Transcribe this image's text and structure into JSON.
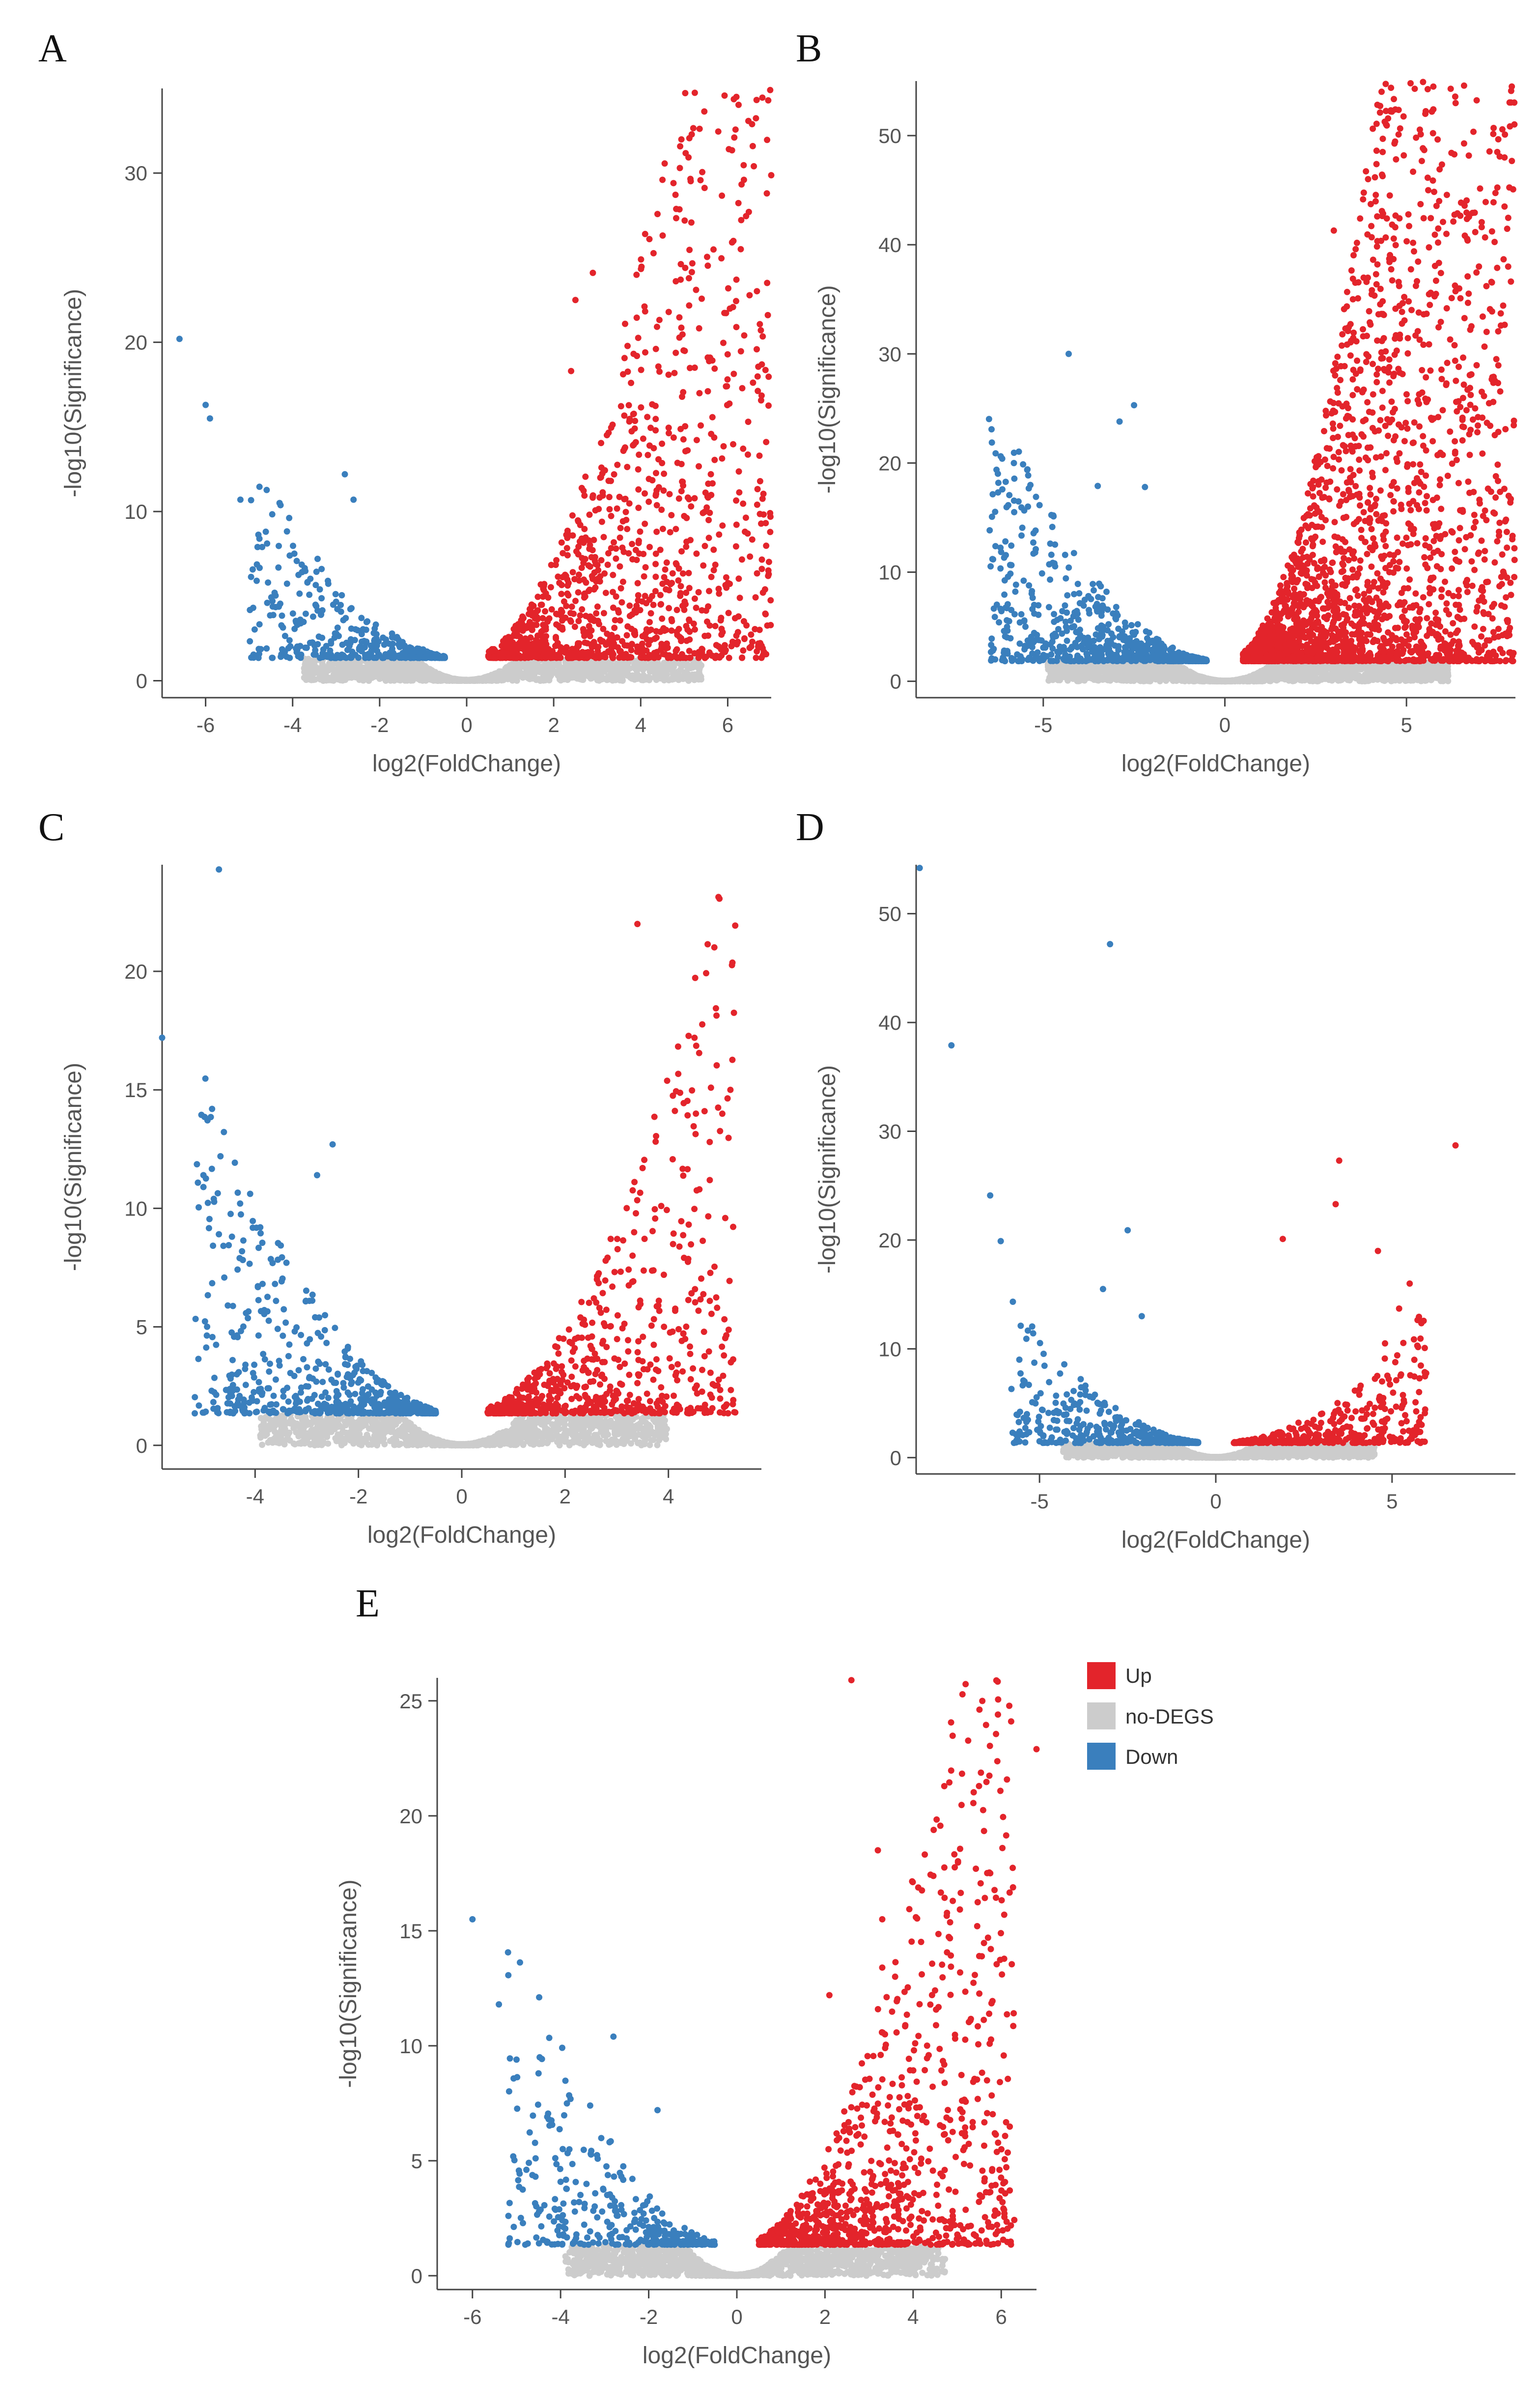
{
  "figure": {
    "legend": {
      "items": [
        {
          "label": "Up",
          "color": "#e3242b"
        },
        {
          "label": "no-DEGS",
          "color": "#cccccc"
        },
        {
          "label": "Down",
          "color": "#3a7fbd"
        }
      ]
    }
  },
  "chart_data": [
    {
      "panel": "A",
      "type": "scatter",
      "xlabel": "log2(FoldChange)",
      "ylabel": "-log10(Significance)",
      "xlim": [
        -7.0,
        7.0
      ],
      "ylim": [
        -1.0,
        35.0
      ],
      "xticks": [
        -6,
        -4,
        -2,
        0,
        2,
        4,
        6
      ],
      "yticks": [
        0,
        10,
        20,
        30
      ],
      "cloud": {
        "spread_left": 5.0,
        "spread_right": 7.2,
        "left_density": 0.5,
        "right_density": 1.5,
        "up_count": 1300,
        "down_count": 380,
        "gray_count": 1700,
        "threshold": 1.3,
        "min_fc": 0.5
      },
      "highlighted_points": [
        {
          "x": 6.2,
          "y": 34.5,
          "group": "up"
        },
        {
          "x": 6.6,
          "y": 30.4,
          "group": "up"
        },
        {
          "x": 6.9,
          "y": 28.8,
          "group": "up"
        },
        {
          "x": 4.5,
          "y": 29.6,
          "group": "up"
        },
        {
          "x": 4.2,
          "y": 26.1,
          "group": "up"
        },
        {
          "x": 6.1,
          "y": 25.9,
          "group": "up"
        },
        {
          "x": 6.3,
          "y": 25.5,
          "group": "up"
        },
        {
          "x": 6.2,
          "y": 23.7,
          "group": "up"
        },
        {
          "x": 2.5,
          "y": 22.5,
          "group": "up"
        },
        {
          "x": 2.9,
          "y": 24.1,
          "group": "up"
        },
        {
          "x": 2.4,
          "y": 18.3,
          "group": "up"
        },
        {
          "x": -6.6,
          "y": 20.2,
          "group": "down"
        },
        {
          "x": -6.0,
          "y": 16.3,
          "group": "down"
        },
        {
          "x": -5.9,
          "y": 15.5,
          "group": "down"
        },
        {
          "x": -5.2,
          "y": 10.7,
          "group": "down"
        },
        {
          "x": -4.3,
          "y": 10.5,
          "group": "down"
        },
        {
          "x": -2.8,
          "y": 12.2,
          "group": "down"
        },
        {
          "x": -2.6,
          "y": 10.7,
          "group": "down"
        },
        {
          "x": -4.7,
          "y": 7.9,
          "group": "down"
        }
      ]
    },
    {
      "panel": "B",
      "type": "scatter",
      "xlabel": "log2(FoldChange)",
      "ylabel": "-log10(Significance)",
      "xlim": [
        -8.5,
        8.0
      ],
      "ylim": [
        -1.5,
        55.0
      ],
      "xticks": [
        -5,
        0,
        5
      ],
      "yticks": [
        0,
        10,
        20,
        30,
        40,
        50
      ],
      "cloud": {
        "spread_left": 6.5,
        "spread_right": 8.2,
        "left_density": 0.6,
        "right_density": 3.0,
        "up_count": 2600,
        "down_count": 700,
        "gray_count": 2200,
        "threshold": 1.8,
        "min_fc": 0.5
      },
      "highlighted_points": [
        {
          "x": 7.9,
          "y": 54.5,
          "group": "up"
        },
        {
          "x": 4.6,
          "y": 52.2,
          "group": "up"
        },
        {
          "x": 5.7,
          "y": 52.2,
          "group": "up"
        },
        {
          "x": 7.4,
          "y": 50.7,
          "group": "up"
        },
        {
          "x": 7.5,
          "y": 48.5,
          "group": "up"
        },
        {
          "x": 7.7,
          "y": 48.0,
          "group": "up"
        },
        {
          "x": 5.6,
          "y": 45.0,
          "group": "up"
        },
        {
          "x": 5.9,
          "y": 44.0,
          "group": "up"
        },
        {
          "x": 7.7,
          "y": 43.5,
          "group": "up"
        },
        {
          "x": 3.0,
          "y": 41.3,
          "group": "up"
        },
        {
          "x": 3.6,
          "y": 39.6,
          "group": "up"
        },
        {
          "x": 6.1,
          "y": 41.0,
          "group": "up"
        },
        {
          "x": 4.2,
          "y": 38.2,
          "group": "up"
        },
        {
          "x": 7.8,
          "y": 38.0,
          "group": "up"
        },
        {
          "x": 3.9,
          "y": 36.6,
          "group": "up"
        },
        {
          "x": 7.3,
          "y": 34.1,
          "group": "up"
        },
        {
          "x": 7.6,
          "y": 32.6,
          "group": "up"
        },
        {
          "x": 7.4,
          "y": 27.9,
          "group": "up"
        },
        {
          "x": -4.3,
          "y": 30.0,
          "group": "down"
        },
        {
          "x": -2.5,
          "y": 25.3,
          "group": "down"
        },
        {
          "x": -2.9,
          "y": 23.8,
          "group": "down"
        },
        {
          "x": -2.2,
          "y": 17.8,
          "group": "down"
        },
        {
          "x": -5.2,
          "y": 16.9,
          "group": "down"
        },
        {
          "x": -5.8,
          "y": 15.5,
          "group": "down"
        },
        {
          "x": -6.4,
          "y": 11.2,
          "group": "down"
        },
        {
          "x": -3.5,
          "y": 17.9,
          "group": "down"
        }
      ]
    },
    {
      "panel": "C",
      "type": "scatter",
      "xlabel": "log2(FoldChange)",
      "ylabel": "-log10(Significance)",
      "xlim": [
        -5.8,
        5.8
      ],
      "ylim": [
        -1.0,
        24.5
      ],
      "xticks": [
        -4,
        -2,
        0,
        2,
        4
      ],
      "yticks": [
        0,
        5,
        10,
        15,
        20
      ],
      "cloud": {
        "spread_left": 5.2,
        "spread_right": 5.3,
        "left_density": 0.6,
        "right_density": 0.9,
        "up_count": 650,
        "down_count": 600,
        "gray_count": 1500,
        "threshold": 1.3,
        "min_fc": 0.5
      },
      "highlighted_points": [
        {
          "x": -4.7,
          "y": 24.3,
          "group": "down"
        },
        {
          "x": -5.8,
          "y": 17.2,
          "group": "down"
        },
        {
          "x": -2.5,
          "y": 12.7,
          "group": "down"
        },
        {
          "x": -5.0,
          "y": 11.4,
          "group": "down"
        },
        {
          "x": -5.0,
          "y": 10.9,
          "group": "down"
        },
        {
          "x": -4.8,
          "y": 10.4,
          "group": "down"
        },
        {
          "x": -2.8,
          "y": 11.4,
          "group": "down"
        },
        {
          "x": -3.9,
          "y": 9.2,
          "group": "down"
        },
        {
          "x": -4.3,
          "y": 7.9,
          "group": "down"
        },
        {
          "x": 3.4,
          "y": 22.0,
          "group": "up"
        },
        {
          "x": 5.2,
          "y": 15.0,
          "group": "up"
        },
        {
          "x": 4.7,
          "y": 14.1,
          "group": "up"
        },
        {
          "x": 4.8,
          "y": 12.8,
          "group": "up"
        },
        {
          "x": 3.5,
          "y": 11.7,
          "group": "up"
        },
        {
          "x": 4.6,
          "y": 10.8,
          "group": "up"
        }
      ]
    },
    {
      "panel": "D",
      "type": "scatter",
      "xlabel": "log2(FoldChange)",
      "ylabel": "-log10(Significance)",
      "xlim": [
        -8.5,
        8.5
      ],
      "ylim": [
        -1.5,
        54.5
      ],
      "xticks": [
        -5,
        0,
        5
      ],
      "yticks": [
        0,
        10,
        20,
        30,
        40,
        50
      ],
      "cloud": {
        "spread_left": 5.8,
        "spread_right": 6.0,
        "left_density": 0.4,
        "right_density": 0.35,
        "up_count": 360,
        "down_count": 400,
        "gray_count": 1500,
        "threshold": 1.3,
        "min_fc": 0.5
      },
      "highlighted_points": [
        {
          "x": -8.4,
          "y": 54.2,
          "group": "down"
        },
        {
          "x": -3.0,
          "y": 47.2,
          "group": "down"
        },
        {
          "x": -7.5,
          "y": 37.9,
          "group": "down"
        },
        {
          "x": -6.4,
          "y": 24.1,
          "group": "down"
        },
        {
          "x": -6.1,
          "y": 19.9,
          "group": "down"
        },
        {
          "x": -2.5,
          "y": 20.9,
          "group": "down"
        },
        {
          "x": -3.2,
          "y": 15.5,
          "group": "down"
        },
        {
          "x": -2.1,
          "y": 13.0,
          "group": "down"
        },
        {
          "x": 6.8,
          "y": 28.7,
          "group": "up"
        },
        {
          "x": 3.5,
          "y": 27.3,
          "group": "up"
        },
        {
          "x": 3.4,
          "y": 23.3,
          "group": "up"
        },
        {
          "x": 1.9,
          "y": 20.1,
          "group": "up"
        },
        {
          "x": 4.6,
          "y": 19.0,
          "group": "up"
        },
        {
          "x": 5.5,
          "y": 16.0,
          "group": "up"
        },
        {
          "x": 5.2,
          "y": 13.7,
          "group": "up"
        },
        {
          "x": 4.8,
          "y": 10.5,
          "group": "up"
        }
      ]
    },
    {
      "panel": "E",
      "type": "scatter",
      "xlabel": "log2(FoldChange)",
      "ylabel": "-log10(Significance)",
      "xlim": [
        -6.8,
        6.8
      ],
      "ylim": [
        -0.6,
        26.0
      ],
      "xticks": [
        -6,
        -4,
        -2,
        0,
        2,
        4,
        6
      ],
      "yticks": [
        0,
        5,
        10,
        15,
        20,
        25
      ],
      "cloud": {
        "spread_left": 5.2,
        "spread_right": 6.3,
        "left_density": 0.55,
        "right_density": 1.0,
        "up_count": 1000,
        "down_count": 350,
        "gray_count": 1600,
        "threshold": 1.3,
        "min_fc": 0.5
      },
      "highlighted_points": [
        {
          "x": 2.6,
          "y": 25.9,
          "group": "up"
        },
        {
          "x": 6.8,
          "y": 22.9,
          "group": "up"
        },
        {
          "x": 3.2,
          "y": 18.5,
          "group": "up"
        },
        {
          "x": 4.9,
          "y": 16.3,
          "group": "up"
        },
        {
          "x": 3.3,
          "y": 15.5,
          "group": "up"
        },
        {
          "x": 5.7,
          "y": 14.7,
          "group": "up"
        },
        {
          "x": 5.5,
          "y": 13.9,
          "group": "up"
        },
        {
          "x": 3.3,
          "y": 13.4,
          "group": "up"
        },
        {
          "x": 2.1,
          "y": 12.2,
          "group": "up"
        },
        {
          "x": 5.3,
          "y": 11.1,
          "group": "up"
        },
        {
          "x": -6.0,
          "y": 15.5,
          "group": "down"
        },
        {
          "x": -5.4,
          "y": 11.8,
          "group": "down"
        },
        {
          "x": -2.8,
          "y": 10.4,
          "group": "down"
        },
        {
          "x": -5.0,
          "y": 9.4,
          "group": "down"
        },
        {
          "x": -4.5,
          "y": 8.8,
          "group": "down"
        },
        {
          "x": -1.8,
          "y": 7.2,
          "group": "down"
        }
      ]
    }
  ]
}
